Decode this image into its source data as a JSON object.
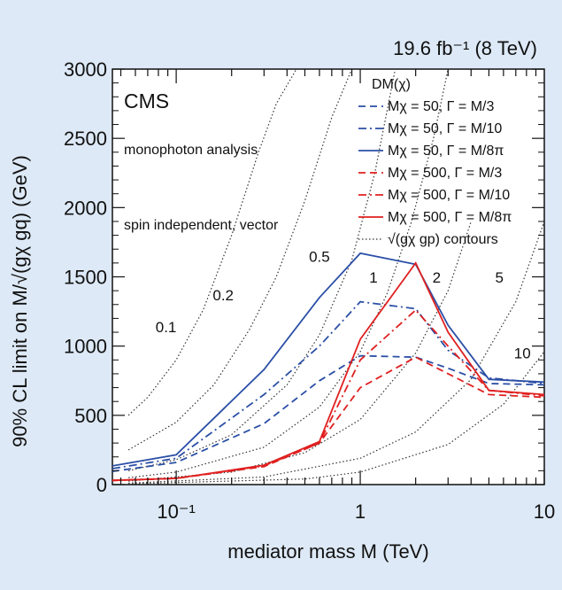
{
  "chart_data": {
    "type": "line",
    "lumi_label": "19.6 fb⁻¹ (8 TeV)",
    "experiment_label": "CMS",
    "annotations": [
      "monophoton analysis",
      "spin independent, vector"
    ],
    "xlabel": "mediator mass M (TeV)",
    "ylabel": "90% CL limit on M/√(gχ gq) (GeV)",
    "xscale": "log",
    "xlim": [
      0.045,
      10
    ],
    "ylim": [
      0,
      3000
    ],
    "x_ticks": [
      {
        "value": 0.1,
        "label": "10⁻¹"
      },
      {
        "value": 1,
        "label": "1"
      },
      {
        "value": 10,
        "label": "10"
      }
    ],
    "y_ticks": [
      0,
      500,
      1000,
      1500,
      2000,
      2500,
      3000
    ],
    "legend_title": "DM(χ)",
    "grid": false,
    "series": [
      {
        "name": "Mχ = 50, Γ = M/3",
        "color": "#2b4fa6",
        "dash": "dashed",
        "x": [
          0.045,
          0.1,
          0.3,
          0.6,
          1,
          2,
          3,
          5,
          10
        ],
        "y": [
          95,
          160,
          440,
          750,
          930,
          920,
          840,
          730,
          720
        ]
      },
      {
        "name": "Mχ = 50, Γ = M/10",
        "color": "#2b4fa6",
        "dash": "dashdot",
        "x": [
          0.045,
          0.1,
          0.3,
          0.6,
          1,
          2,
          3,
          5,
          10
        ],
        "y": [
          115,
          190,
          650,
          1000,
          1320,
          1270,
          970,
          770,
          730
        ]
      },
      {
        "name": "Mχ = 50, Γ = M/8π",
        "color": "#2b4fa6",
        "dash": "solid",
        "x": [
          0.045,
          0.1,
          0.3,
          0.6,
          1,
          2,
          3,
          5,
          10
        ],
        "y": [
          135,
          215,
          830,
          1350,
          1670,
          1590,
          1150,
          760,
          740
        ]
      },
      {
        "name": "Mχ = 500, Γ = M/3",
        "color": "#e02020",
        "dash": "dashed",
        "x": [
          0.045,
          0.1,
          0.3,
          0.6,
          1,
          2,
          3,
          5,
          10
        ],
        "y": [
          30,
          45,
          130,
          300,
          700,
          920,
          800,
          650,
          630
        ]
      },
      {
        "name": "Mχ = 500, Γ = M/10",
        "color": "#e02020",
        "dash": "dashdot",
        "x": [
          0.045,
          0.1,
          0.3,
          0.6,
          1,
          2,
          3,
          5,
          10
        ],
        "y": [
          30,
          45,
          135,
          300,
          900,
          1260,
          1000,
          680,
          640
        ]
      },
      {
        "name": "Mχ = 500, Γ = M/8π",
        "color": "#e02020",
        "dash": "solid",
        "x": [
          0.045,
          0.1,
          0.3,
          0.6,
          1,
          2,
          3,
          5,
          10
        ],
        "y": [
          30,
          45,
          140,
          310,
          1050,
          1600,
          1100,
          680,
          650
        ]
      }
    ],
    "contours": {
      "legend_label": "√(gχ gp) contours",
      "lines": [
        {
          "label": "0.1",
          "x": [
            0.055,
            0.07,
            0.1,
            0.14,
            0.2,
            0.28,
            0.35,
            0.45
          ],
          "y": [
            500,
            630,
            900,
            1260,
            1800,
            2400,
            2750,
            3000
          ]
        },
        {
          "label": "0.2",
          "x": [
            0.055,
            0.1,
            0.16,
            0.25,
            0.35,
            0.5,
            0.7,
            0.9
          ],
          "y": [
            250,
            450,
            720,
            1120,
            1500,
            2050,
            2650,
            3000
          ]
        },
        {
          "label": "0.5",
          "x": [
            0.055,
            0.1,
            0.2,
            0.4,
            0.6,
            0.9,
            1.2,
            1.55
          ],
          "y": [
            100,
            180,
            360,
            720,
            1080,
            1620,
            2250,
            3000
          ]
        },
        {
          "label": "1",
          "x": [
            0.055,
            0.1,
            0.3,
            0.6,
            1,
            1.4,
            1.9,
            2.5,
            3.0
          ],
          "y": [
            50,
            90,
            270,
            560,
            960,
            1380,
            1900,
            2500,
            3000
          ]
        },
        {
          "label": "2",
          "x": [
            0.055,
            0.2,
            0.5,
            1,
            2,
            3,
            4
          ],
          "y": [
            25,
            90,
            230,
            470,
            950,
            1400,
            1900
          ]
        },
        {
          "label": "5",
          "x": [
            0.055,
            0.3,
            1,
            2,
            4,
            7,
            10
          ],
          "y": [
            10,
            55,
            190,
            380,
            760,
            1320,
            1900
          ]
        },
        {
          "label": "10",
          "x": [
            0.055,
            0.5,
            1,
            3,
            6,
            10
          ],
          "y": [
            5,
            40,
            90,
            290,
            580,
            960
          ]
        }
      ]
    }
  }
}
